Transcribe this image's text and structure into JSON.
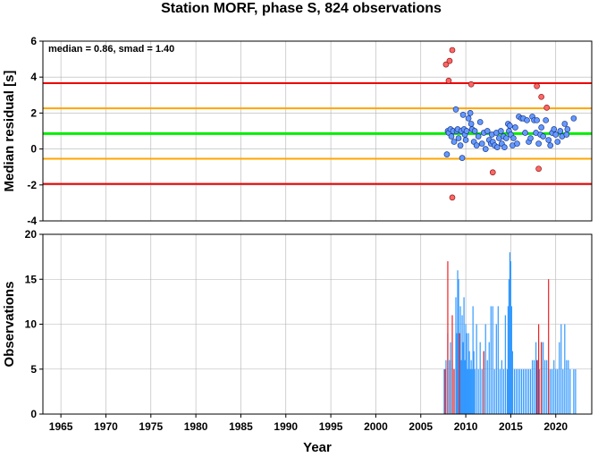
{
  "title": "Station MORF, phase S, 824 observations",
  "colors": {
    "median_line": "#00ee00",
    "smad1_line": "#ffa500",
    "smad2_line": "#ee0000",
    "dot_fill": "#6699ff",
    "outlier_fill": "#ff6666",
    "bar_normal": "#3399ff",
    "bar_outlier": "#ee2222",
    "grid": "#b3b3b3"
  },
  "chart_data": [
    {
      "type": "scatter",
      "name": "residual-panel",
      "ylabel": "Median residual [s]",
      "ylim": [
        -4,
        6
      ],
      "xlim": [
        1963,
        2024
      ],
      "y_ticks": [
        -4,
        -2,
        0,
        2,
        4,
        6
      ],
      "annotation": "median = 0.86, smad = 1.40",
      "grid": true,
      "hlines": [
        {
          "y": 0.86,
          "kind": "median"
        },
        {
          "y": 2.26,
          "kind": "smad1"
        },
        {
          "y": -0.54,
          "kind": "smad1"
        },
        {
          "y": 3.66,
          "kind": "smad2"
        },
        {
          "y": -1.94,
          "kind": "smad2"
        }
      ],
      "normal_points": [
        [
          2007.9,
          -0.3
        ],
        [
          2008.0,
          1.0
        ],
        [
          2008.1,
          0.9
        ],
        [
          2008.3,
          1.1
        ],
        [
          2008.4,
          0.7
        ],
        [
          2008.6,
          1.0
        ],
        [
          2008.7,
          0.4
        ],
        [
          2008.9,
          2.2
        ],
        [
          2009.0,
          1.0
        ],
        [
          2009.1,
          1.1
        ],
        [
          2009.2,
          0.6
        ],
        [
          2009.4,
          0.2
        ],
        [
          2009.5,
          1.0
        ],
        [
          2009.6,
          -0.5
        ],
        [
          2009.7,
          1.9
        ],
        [
          2009.8,
          1.1
        ],
        [
          2009.9,
          0.8
        ],
        [
          2010.0,
          0.5
        ],
        [
          2010.1,
          1.0
        ],
        [
          2010.3,
          1.7
        ],
        [
          2010.5,
          2.0
        ],
        [
          2010.6,
          1.4
        ],
        [
          2010.7,
          1.1
        ],
        [
          2010.9,
          0.4
        ],
        [
          2011.0,
          1.0
        ],
        [
          2011.2,
          0.2
        ],
        [
          2011.4,
          0.7
        ],
        [
          2011.6,
          1.5
        ],
        [
          2011.8,
          0.3
        ],
        [
          2012.0,
          0.9
        ],
        [
          2012.2,
          0.0
        ],
        [
          2012.4,
          1.0
        ],
        [
          2012.6,
          0.5
        ],
        [
          2012.8,
          0.3
        ],
        [
          2012.9,
          0.8
        ],
        [
          2013.0,
          0.4
        ],
        [
          2013.2,
          0.2
        ],
        [
          2013.4,
          0.9
        ],
        [
          2013.5,
          0.1
        ],
        [
          2013.7,
          0.6
        ],
        [
          2013.9,
          1.0
        ],
        [
          2014.0,
          0.3
        ],
        [
          2014.2,
          0.7
        ],
        [
          2014.3,
          0.1
        ],
        [
          2014.5,
          0.6
        ],
        [
          2014.7,
          1.4
        ],
        [
          2014.8,
          1.0
        ],
        [
          2014.9,
          1.3
        ],
        [
          2015.0,
          0.8
        ],
        [
          2015.2,
          0.2
        ],
        [
          2015.3,
          0.6
        ],
        [
          2015.5,
          1.2
        ],
        [
          2015.7,
          0.3
        ],
        [
          2015.9,
          1.8
        ],
        [
          2016.2,
          1.7
        ],
        [
          2016.4,
          1.7
        ],
        [
          2016.6,
          0.9
        ],
        [
          2016.8,
          1.6
        ],
        [
          2017.0,
          0.4
        ],
        [
          2017.2,
          0.6
        ],
        [
          2017.4,
          1.8
        ],
        [
          2017.6,
          1.6
        ],
        [
          2017.8,
          0.9
        ],
        [
          2017.9,
          1.6
        ],
        [
          2018.1,
          0.3
        ],
        [
          2018.3,
          0.8
        ],
        [
          2018.4,
          1.2
        ],
        [
          2018.6,
          0.7
        ],
        [
          2018.9,
          1.6
        ],
        [
          2019.2,
          0.5
        ],
        [
          2019.4,
          0.2
        ],
        [
          2019.6,
          0.9
        ],
        [
          2019.8,
          1.1
        ],
        [
          2020.0,
          0.8
        ],
        [
          2020.2,
          0.4
        ],
        [
          2020.5,
          1.0
        ],
        [
          2020.7,
          0.7
        ],
        [
          2021.0,
          1.4
        ],
        [
          2021.2,
          0.8
        ],
        [
          2021.3,
          1.1
        ],
        [
          2022.0,
          1.7
        ]
      ],
      "outlier_points": [
        [
          2007.8,
          4.7
        ],
        [
          2008.1,
          3.8
        ],
        [
          2008.2,
          4.9
        ],
        [
          2008.5,
          5.5
        ],
        [
          2008.5,
          -2.7
        ],
        [
          2010.6,
          3.6
        ],
        [
          2013.0,
          -1.3
        ],
        [
          2017.9,
          3.5
        ],
        [
          2018.1,
          -1.1
        ],
        [
          2018.4,
          2.9
        ],
        [
          2019.0,
          2.3
        ]
      ]
    },
    {
      "type": "bar",
      "name": "observations-panel",
      "xlabel": "Year",
      "ylabel": "Observations",
      "ylim": [
        0,
        20
      ],
      "xlim": [
        1963,
        2024
      ],
      "y_ticks": [
        0,
        5,
        10,
        15,
        20
      ],
      "x_ticks": [
        1965,
        1970,
        1975,
        1980,
        1985,
        1990,
        1995,
        2000,
        2005,
        2010,
        2015,
        2020
      ],
      "grid": true,
      "normal_bars": [
        [
          2007.6,
          5
        ],
        [
          2007.8,
          6
        ],
        [
          2008.0,
          9
        ],
        [
          2008.2,
          6
        ],
        [
          2008.3,
          8
        ],
        [
          2008.5,
          6
        ],
        [
          2008.7,
          5
        ],
        [
          2008.9,
          13
        ],
        [
          2009.0,
          9
        ],
        [
          2009.1,
          16
        ],
        [
          2009.2,
          15
        ],
        [
          2009.3,
          8
        ],
        [
          2009.4,
          12
        ],
        [
          2009.5,
          6
        ],
        [
          2009.6,
          11
        ],
        [
          2009.7,
          8
        ],
        [
          2009.8,
          13
        ],
        [
          2009.9,
          6
        ],
        [
          2010.0,
          10
        ],
        [
          2010.1,
          9
        ],
        [
          2010.2,
          5
        ],
        [
          2010.3,
          9
        ],
        [
          2010.4,
          7
        ],
        [
          2010.5,
          5
        ],
        [
          2010.6,
          6
        ],
        [
          2010.7,
          5
        ],
        [
          2010.8,
          12
        ],
        [
          2010.9,
          7
        ],
        [
          2011.0,
          5
        ],
        [
          2011.2,
          10
        ],
        [
          2011.4,
          5
        ],
        [
          2011.6,
          8
        ],
        [
          2011.8,
          5
        ],
        [
          2012.0,
          7
        ],
        [
          2012.2,
          10
        ],
        [
          2012.4,
          6
        ],
        [
          2012.6,
          8
        ],
        [
          2012.8,
          12
        ],
        [
          2013.0,
          12
        ],
        [
          2013.2,
          5
        ],
        [
          2013.4,
          10
        ],
        [
          2013.6,
          12
        ],
        [
          2013.8,
          5
        ],
        [
          2014.0,
          6
        ],
        [
          2014.2,
          5
        ],
        [
          2014.4,
          11
        ],
        [
          2014.6,
          5
        ],
        [
          2014.7,
          12
        ],
        [
          2014.8,
          15
        ],
        [
          2014.9,
          18
        ],
        [
          2015.0,
          17
        ],
        [
          2015.1,
          12
        ],
        [
          2015.2,
          7
        ],
        [
          2015.4,
          5
        ],
        [
          2015.6,
          5
        ],
        [
          2015.8,
          5
        ],
        [
          2016.0,
          5
        ],
        [
          2016.2,
          5
        ],
        [
          2016.4,
          5
        ],
        [
          2016.6,
          5
        ],
        [
          2016.8,
          5
        ],
        [
          2017.0,
          5
        ],
        [
          2017.2,
          5
        ],
        [
          2017.4,
          6
        ],
        [
          2017.6,
          6
        ],
        [
          2017.8,
          8
        ],
        [
          2018.0,
          6
        ],
        [
          2018.2,
          5
        ],
        [
          2018.4,
          8
        ],
        [
          2018.6,
          8
        ],
        [
          2018.8,
          6
        ],
        [
          2019.0,
          6
        ],
        [
          2019.2,
          5
        ],
        [
          2019.4,
          5
        ],
        [
          2019.6,
          5
        ],
        [
          2019.8,
          6
        ],
        [
          2020.0,
          5
        ],
        [
          2020.2,
          5
        ],
        [
          2020.4,
          8
        ],
        [
          2020.6,
          10
        ],
        [
          2020.8,
          5
        ],
        [
          2021.0,
          10
        ],
        [
          2021.2,
          6
        ],
        [
          2021.4,
          6
        ],
        [
          2021.6,
          5
        ],
        [
          2022.0,
          5
        ],
        [
          2022.2,
          5
        ]
      ],
      "outlier_bars": [
        [
          2007.7,
          5
        ],
        [
          2008.0,
          17
        ],
        [
          2008.5,
          11
        ],
        [
          2008.7,
          5
        ],
        [
          2009.3,
          9
        ],
        [
          2012.0,
          7
        ],
        [
          2017.9,
          6
        ],
        [
          2018.1,
          10
        ],
        [
          2018.4,
          8
        ],
        [
          2019.2,
          15
        ]
      ]
    }
  ]
}
